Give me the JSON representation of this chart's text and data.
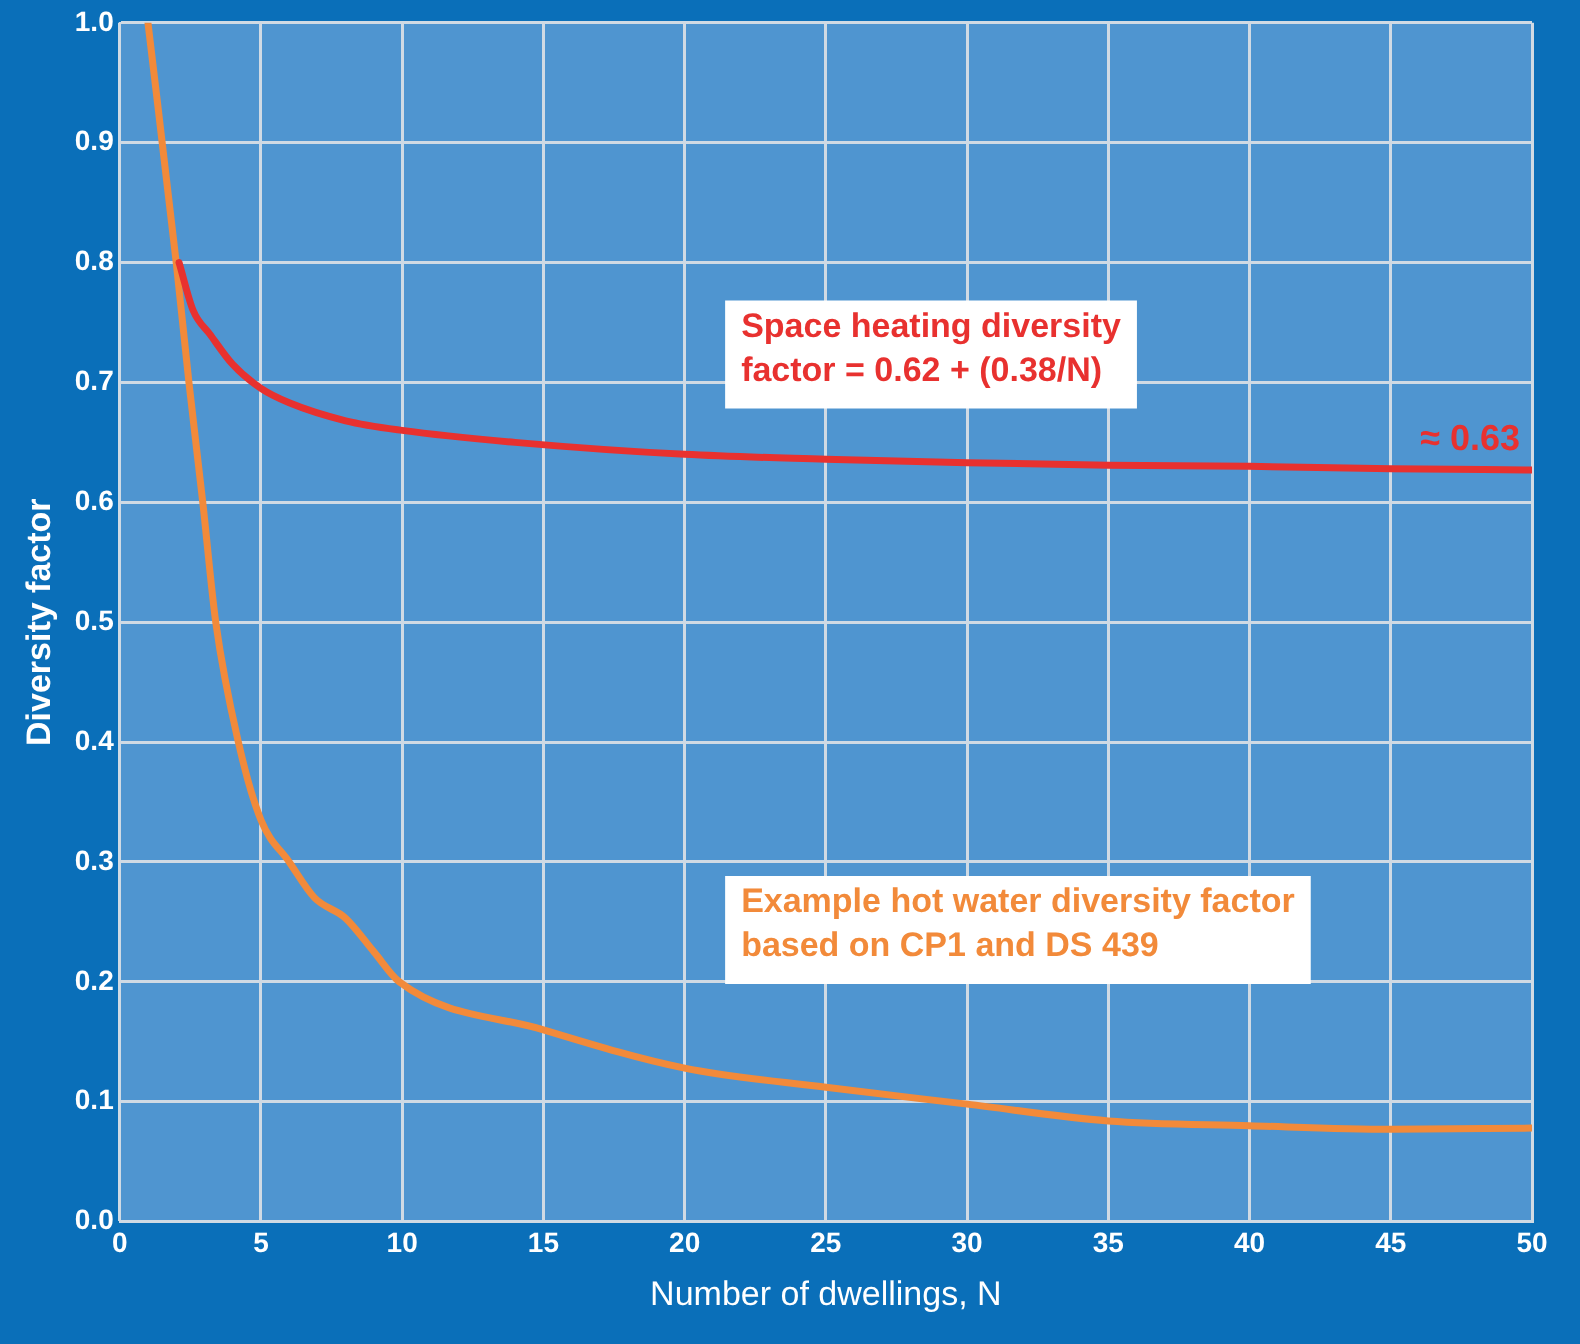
{
  "chart_data": {
    "type": "line",
    "xlabel": "Number of dwellings, N",
    "ylabel": "Diversity factor",
    "xlim": [
      0,
      50
    ],
    "xticks": [
      0,
      5,
      10,
      15,
      20,
      25,
      30,
      35,
      40,
      45,
      50
    ],
    "ylim": [
      0,
      1
    ],
    "yticks": [
      {
        "value": 0,
        "label": "0.0"
      },
      0.1,
      0.2,
      0.3,
      0.4,
      0.5,
      0.6,
      0.7,
      0.8,
      0.9,
      {
        "value": 1,
        "label": "1.0"
      }
    ],
    "grid": true,
    "legend": false,
    "marker": "none",
    "line_style": "solid",
    "series": [
      {
        "name": "Space heating diversity factor = 0.62 + (0.38/N)",
        "color": "#e8312f",
        "x": [
          2.1,
          2.6,
          3.2,
          4,
          5,
          6,
          8,
          10,
          14,
          20,
          25,
          30,
          35,
          40,
          45,
          50
        ],
        "values": [
          0.8,
          0.76,
          0.74,
          0.715,
          0.695,
          0.683,
          0.668,
          0.66,
          0.65,
          0.64,
          0.636,
          0.633,
          0.631,
          0.63,
          0.628,
          0.627
        ]
      },
      {
        "name": "Example hot water diversity factor based on CP1 and DS 439",
        "color": "#f28a3a",
        "x": [
          1,
          2,
          2.45,
          2.94,
          3.4,
          4.2,
          5,
          6,
          6.9,
          8,
          9,
          9.9,
          15,
          20,
          25,
          30,
          35,
          40,
          45,
          50
        ],
        "values": [
          1,
          0.8,
          0.7,
          0.6,
          0.5,
          0.4,
          0.335,
          0.3,
          0.27,
          0.253,
          0.225,
          0.2,
          0.16,
          0.128,
          0.112,
          0.098,
          0.084,
          0.08,
          0.077,
          0.078
        ]
      }
    ],
    "annotations": [
      {
        "text": "≈ 0.63",
        "x": 50,
        "y": 0.63
      }
    ]
  }
}
